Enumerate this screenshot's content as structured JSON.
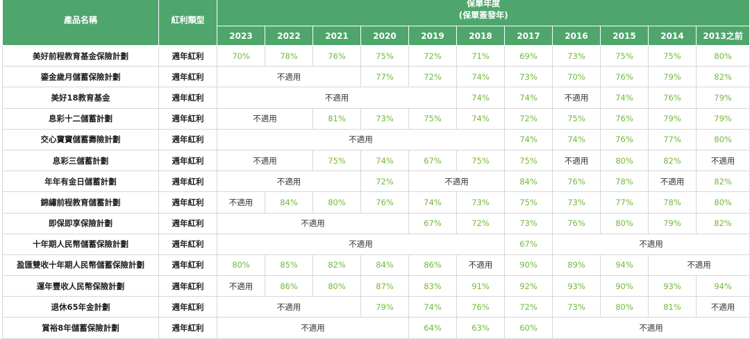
{
  "header": {
    "product_name": "產品名稱",
    "dividend_type": "紅利類型",
    "year_group_line1": "保單年度",
    "year_group_line2": "(保單簽發年)",
    "years": [
      "2023",
      "2022",
      "2021",
      "2020",
      "2019",
      "2018",
      "2017",
      "2016",
      "2015",
      "2014",
      "2013之前"
    ]
  },
  "rows": [
    {
      "name": "美好前程教育基金保險計劃",
      "type": "週年紅利",
      "cells": [
        {
          "t": "70%",
          "s": 1
        },
        {
          "t": "78%",
          "s": 1
        },
        {
          "t": "76%",
          "s": 1
        },
        {
          "t": "75%",
          "s": 1
        },
        {
          "t": "72%",
          "s": 1
        },
        {
          "t": "71%",
          "s": 1
        },
        {
          "t": "69%",
          "s": 1
        },
        {
          "t": "73%",
          "s": 1
        },
        {
          "t": "75%",
          "s": 1
        },
        {
          "t": "75%",
          "s": 1
        },
        {
          "t": "80%",
          "s": 1
        }
      ]
    },
    {
      "name": "鎏金歲月儲蓄保險計劃",
      "type": "週年紅利",
      "cells": [
        {
          "t": "不適用",
          "s": 3
        },
        {
          "t": "77%",
          "s": 1
        },
        {
          "t": "72%",
          "s": 1
        },
        {
          "t": "74%",
          "s": 1
        },
        {
          "t": "73%",
          "s": 1
        },
        {
          "t": "70%",
          "s": 1
        },
        {
          "t": "76%",
          "s": 1
        },
        {
          "t": "79%",
          "s": 1
        },
        {
          "t": "82%",
          "s": 1
        }
      ]
    },
    {
      "name": "美好18教育基金",
      "type": "週年紅利",
      "cells": [
        {
          "t": "不適用",
          "s": 5
        },
        {
          "t": "74%",
          "s": 1
        },
        {
          "t": "74%",
          "s": 1
        },
        {
          "t": "不適用",
          "s": 1
        },
        {
          "t": "74%",
          "s": 1
        },
        {
          "t": "76%",
          "s": 1
        },
        {
          "t": "79%",
          "s": 1
        }
      ]
    },
    {
      "name": "息彩十二儲蓄計劃",
      "type": "週年紅利",
      "cells": [
        {
          "t": "不適用",
          "s": 2
        },
        {
          "t": "81%",
          "s": 1
        },
        {
          "t": "73%",
          "s": 1
        },
        {
          "t": "75%",
          "s": 1
        },
        {
          "t": "74%",
          "s": 1
        },
        {
          "t": "72%",
          "s": 1
        },
        {
          "t": "75%",
          "s": 1
        },
        {
          "t": "76%",
          "s": 1
        },
        {
          "t": "79%",
          "s": 1
        },
        {
          "t": "79%",
          "s": 1
        }
      ]
    },
    {
      "name": "交心寶寶儲蓄壽險計劃",
      "type": "週年紅利",
      "cells": [
        {
          "t": "不適用",
          "s": 6
        },
        {
          "t": "74%",
          "s": 1
        },
        {
          "t": "74%",
          "s": 1
        },
        {
          "t": "76%",
          "s": 1
        },
        {
          "t": "77%",
          "s": 1
        },
        {
          "t": "80%",
          "s": 1
        }
      ]
    },
    {
      "name": "息彩三儲蓄計劃",
      "type": "週年紅利",
      "cells": [
        {
          "t": "不適用",
          "s": 2
        },
        {
          "t": "75%",
          "s": 1
        },
        {
          "t": "74%",
          "s": 1
        },
        {
          "t": "67%",
          "s": 1
        },
        {
          "t": "75%",
          "s": 1
        },
        {
          "t": "75%",
          "s": 1
        },
        {
          "t": "不適用",
          "s": 1
        },
        {
          "t": "80%",
          "s": 1
        },
        {
          "t": "82%",
          "s": 1
        },
        {
          "t": "不適用",
          "s": 1
        }
      ]
    },
    {
      "name": "年年有金日儲蓄計劃",
      "type": "週年紅利",
      "cells": [
        {
          "t": "不適用",
          "s": 3
        },
        {
          "t": "72%",
          "s": 1
        },
        {
          "t": "不適用",
          "s": 2
        },
        {
          "t": "84%",
          "s": 1
        },
        {
          "t": "76%",
          "s": 1
        },
        {
          "t": "78%",
          "s": 1
        },
        {
          "t": "不適用",
          "s": 1
        },
        {
          "t": "82%",
          "s": 1
        }
      ]
    },
    {
      "name": "錦繡前程教育儲蓄計劃",
      "type": "週年紅利",
      "cells": [
        {
          "t": "不適用",
          "s": 1
        },
        {
          "t": "84%",
          "s": 1
        },
        {
          "t": "80%",
          "s": 1
        },
        {
          "t": "76%",
          "s": 1
        },
        {
          "t": "74%",
          "s": 1
        },
        {
          "t": "73%",
          "s": 1
        },
        {
          "t": "75%",
          "s": 1
        },
        {
          "t": "73%",
          "s": 1
        },
        {
          "t": "77%",
          "s": 1
        },
        {
          "t": "78%",
          "s": 1
        },
        {
          "t": "80%",
          "s": 1
        }
      ]
    },
    {
      "name": "即保即享保險計劃",
      "type": "週年紅利",
      "cells": [
        {
          "t": "不適用",
          "s": 4
        },
        {
          "t": "67%",
          "s": 1
        },
        {
          "t": "72%",
          "s": 1
        },
        {
          "t": "73%",
          "s": 1
        },
        {
          "t": "76%",
          "s": 1
        },
        {
          "t": "80%",
          "s": 1
        },
        {
          "t": "79%",
          "s": 1
        },
        {
          "t": "82%",
          "s": 1
        }
      ]
    },
    {
      "name": "十年期人民幣儲蓄保險計劃",
      "type": "週年紅利",
      "cells": [
        {
          "t": "不適用",
          "s": 6
        },
        {
          "t": "67%",
          "s": 1
        },
        {
          "t": "不適用",
          "s": 4
        }
      ]
    },
    {
      "name": "盈匯雙收十年期人民幣儲蓄保險計劃",
      "type": "週年紅利",
      "cells": [
        {
          "t": "80%",
          "s": 1
        },
        {
          "t": "85%",
          "s": 1
        },
        {
          "t": "82%",
          "s": 1
        },
        {
          "t": "84%",
          "s": 1
        },
        {
          "t": "86%",
          "s": 1
        },
        {
          "t": "不適用",
          "s": 1
        },
        {
          "t": "90%",
          "s": 1
        },
        {
          "t": "89%",
          "s": 1
        },
        {
          "t": "94%",
          "s": 1
        },
        {
          "t": "不適用",
          "s": 2
        }
      ]
    },
    {
      "name": "運年豐收人民幣保險計劃",
      "type": "週年紅利",
      "cells": [
        {
          "t": "不適用",
          "s": 1
        },
        {
          "t": "86%",
          "s": 1
        },
        {
          "t": "80%",
          "s": 1
        },
        {
          "t": "87%",
          "s": 1
        },
        {
          "t": "83%",
          "s": 1
        },
        {
          "t": "91%",
          "s": 1
        },
        {
          "t": "92%",
          "s": 1
        },
        {
          "t": "93%",
          "s": 1
        },
        {
          "t": "90%",
          "s": 1
        },
        {
          "t": "93%",
          "s": 1
        },
        {
          "t": "94%",
          "s": 1
        }
      ]
    },
    {
      "name": "退休65年金計劃",
      "type": "週年紅利",
      "cells": [
        {
          "t": "不適用",
          "s": 3
        },
        {
          "t": "79%",
          "s": 1
        },
        {
          "t": "74%",
          "s": 1
        },
        {
          "t": "76%",
          "s": 1
        },
        {
          "t": "72%",
          "s": 1
        },
        {
          "t": "73%",
          "s": 1
        },
        {
          "t": "80%",
          "s": 1
        },
        {
          "t": "81%",
          "s": 1
        },
        {
          "t": "不適用",
          "s": 1
        }
      ]
    },
    {
      "name": "賞裕8年儲蓄保險計劃",
      "type": "週年紅利",
      "cells": [
        {
          "t": "不適用",
          "s": 4
        },
        {
          "t": "64%",
          "s": 1
        },
        {
          "t": "63%",
          "s": 1
        },
        {
          "t": "60%",
          "s": 1
        },
        {
          "t": "不適用",
          "s": 4
        }
      ]
    }
  ]
}
